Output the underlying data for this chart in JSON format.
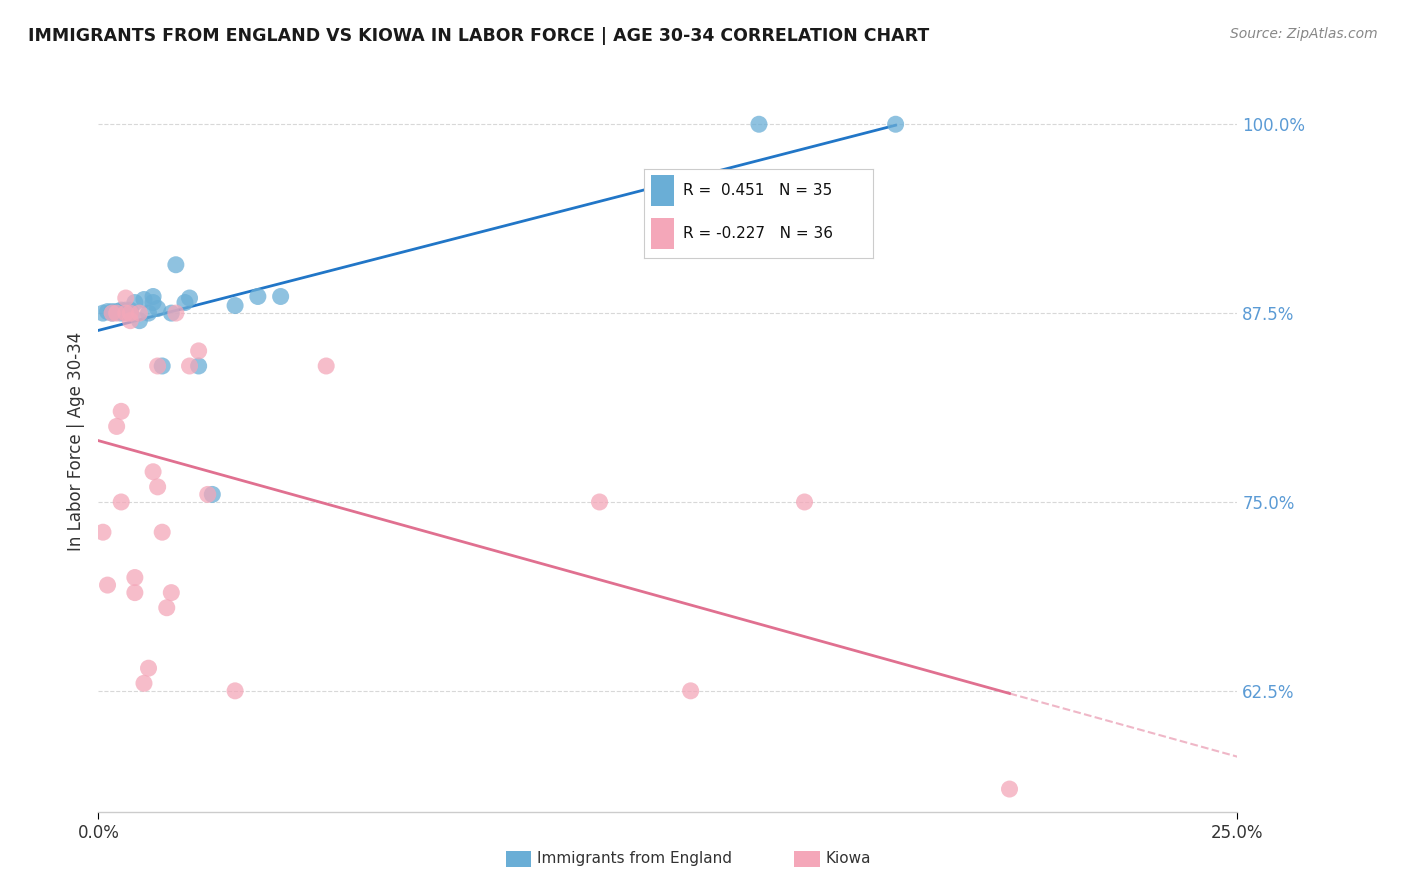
{
  "title": "IMMIGRANTS FROM ENGLAND VS KIOWA IN LABOR FORCE | AGE 30-34 CORRELATION CHART",
  "source": "Source: ZipAtlas.com",
  "ylabel": "In Labor Force | Age 30-34",
  "ytick_labels": [
    "100.0%",
    "87.5%",
    "75.0%",
    "62.5%"
  ],
  "ytick_values": [
    1.0,
    0.875,
    0.75,
    0.625
  ],
  "xlim": [
    0.0,
    0.25
  ],
  "ylim": [
    0.545,
    1.035
  ],
  "R_england": 0.451,
  "N_england": 35,
  "R_kiowa": -0.227,
  "N_kiowa": 36,
  "england_color": "#6aaed6",
  "kiowa_color": "#f4a7b9",
  "england_line_color": "#2176c7",
  "kiowa_line_color": "#e07090",
  "background_color": "#ffffff",
  "grid_color": "#d8d8d8",
  "england_x": [
    0.001,
    0.002,
    0.003,
    0.003,
    0.004,
    0.005,
    0.005,
    0.005,
    0.006,
    0.006,
    0.007,
    0.007,
    0.008,
    0.009,
    0.01,
    0.011,
    0.012,
    0.012,
    0.013,
    0.014,
    0.016,
    0.017,
    0.019,
    0.02,
    0.022,
    0.025,
    0.03,
    0.035,
    0.04,
    0.145,
    0.175
  ],
  "england_y": [
    0.875,
    0.876,
    0.875,
    0.876,
    0.876,
    0.875,
    0.876,
    0.877,
    0.876,
    0.877,
    0.875,
    0.877,
    0.882,
    0.87,
    0.884,
    0.875,
    0.882,
    0.886,
    0.878,
    0.84,
    0.875,
    0.907,
    0.882,
    0.885,
    0.84,
    0.755,
    0.88,
    0.886,
    0.886,
    1.0,
    1.0
  ],
  "kiowa_x": [
    0.001,
    0.002,
    0.003,
    0.004,
    0.004,
    0.005,
    0.005,
    0.006,
    0.006,
    0.007,
    0.007,
    0.008,
    0.008,
    0.009,
    0.01,
    0.011,
    0.012,
    0.013,
    0.013,
    0.014,
    0.015,
    0.016,
    0.017,
    0.02,
    0.022,
    0.024,
    0.03,
    0.05,
    0.11,
    0.13,
    0.155,
    0.2
  ],
  "kiowa_y": [
    0.73,
    0.695,
    0.875,
    0.8,
    0.875,
    0.75,
    0.81,
    0.875,
    0.885,
    0.87,
    0.875,
    0.69,
    0.7,
    0.875,
    0.63,
    0.64,
    0.77,
    0.76,
    0.84,
    0.73,
    0.68,
    0.69,
    0.875,
    0.84,
    0.85,
    0.755,
    0.625,
    0.84,
    0.75,
    0.625,
    0.75,
    0.56
  ]
}
